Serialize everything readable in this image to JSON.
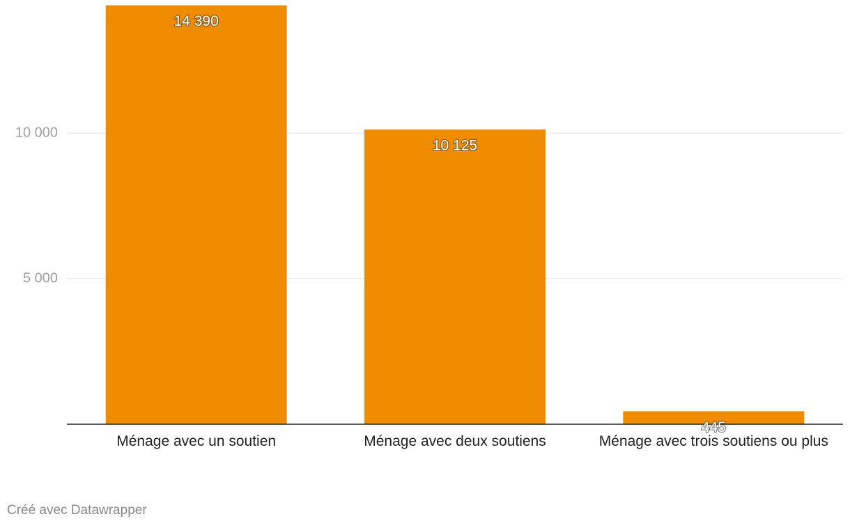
{
  "chart_data": {
    "type": "bar",
    "categories": [
      "Ménage avec un soutien",
      "Ménage avec deux soutiens",
      "Ménage avec trois soutiens ou plus"
    ],
    "values": [
      14390,
      10125,
      445
    ],
    "value_labels": [
      "14 390",
      "10 125",
      "445"
    ],
    "color": "#f08c00",
    "ylim": [
      0,
      14500
    ],
    "yticks": [
      {
        "value": 5000,
        "label": "5 000"
      },
      {
        "value": 10000,
        "label": "10 000"
      }
    ],
    "grid": true,
    "footer": "Créé avec Datawrapper"
  }
}
